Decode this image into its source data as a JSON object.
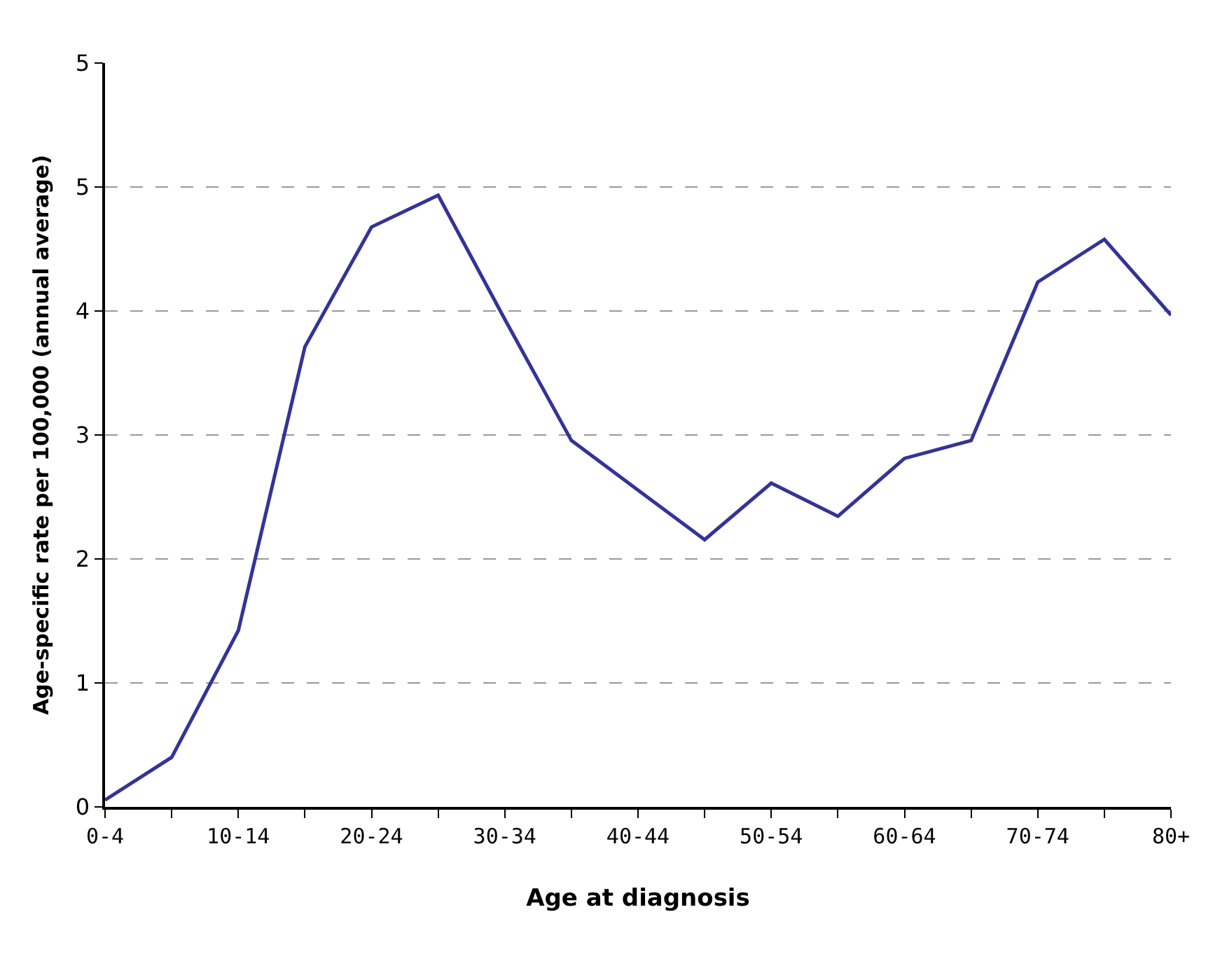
{
  "chart_data": {
    "type": "line",
    "xlabel": "Age at diagnosis",
    "ylabel": "Age-specific rate per 100,000 (annual average)",
    "categories": [
      "0-4",
      null,
      "10-14",
      null,
      "20-24",
      null,
      "30-34",
      null,
      "40-44",
      null,
      "50-54",
      null,
      "60-64",
      null,
      "70-74",
      null,
      "80+"
    ],
    "series": [
      {
        "color": "#333399",
        "values": [
          0.05,
          0.36,
          1.28,
          3.34,
          4.21,
          4.44,
          3.54,
          2.66,
          2.3,
          1.94,
          2.35,
          2.11,
          2.53,
          2.66,
          3.81,
          4.12,
          3.57
        ]
      }
    ],
    "ylim": [
      0,
      5.4
    ],
    "yticks": [
      0,
      {
        "value": 0.9,
        "label": "1"
      },
      {
        "value": 1.8,
        "label": "2"
      },
      {
        "value": 2.7,
        "label": "3"
      },
      {
        "value": 3.6,
        "label": "4"
      },
      {
        "value": 4.5,
        "label": "5"
      },
      {
        "value": 5.4,
        "label": "5"
      }
    ],
    "grid": "y",
    "marker": "none",
    "line_style": "solid"
  }
}
